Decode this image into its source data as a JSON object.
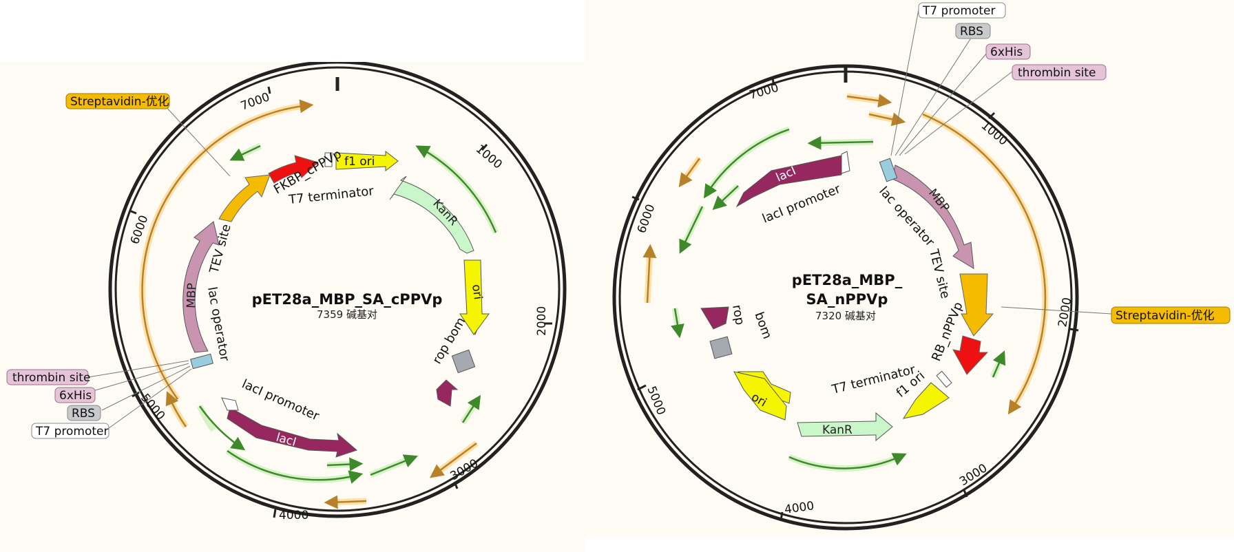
{
  "maps": [
    {
      "title": "pET28a_MBP_SA_cPPVp",
      "size_label": "7359 碱基对",
      "ticks": [
        "1000",
        "2000",
        "3000",
        "4000",
        "5000",
        "6000",
        "7000"
      ],
      "labels": {
        "f1_ori": "f1 ori",
        "kanr": "KanR",
        "ori": "ori",
        "bom": "bom",
        "rop": "rop",
        "laci": "lacI",
        "laci_promoter": "lacI promoter",
        "lac_operator": "lac operator",
        "mbp": "MBP",
        "tev_site": "TEV site",
        "fkbp_cppvp": "FKBP_cPPVp",
        "t7_terminator": "T7 terminator"
      },
      "callouts": {
        "streptavidin": "Streptavidin-优化",
        "thrombin": "thrombin site",
        "his": "6xHis",
        "rbs": "RBS",
        "t7_promoter": "T7 promoter"
      }
    },
    {
      "title_line1": "pET28a_MBP_",
      "title_line2": "SA_nPPVp",
      "size_label": "7320 碱基对",
      "ticks": [
        "1000",
        "2000",
        "3000",
        "4000",
        "5000",
        "6000",
        "7000"
      ],
      "labels": {
        "laci": "lacI",
        "laci_promoter": "lacI promoter",
        "mbp": "MBP",
        "lac_operator": "lac operator",
        "tev_site": "TEV site",
        "rb_nppvp": "RB_nPPVp",
        "t7_terminator": "T7 terminator",
        "f1_ori": "f1 ori",
        "kanr": "KanR",
        "ori": "ori",
        "rop": "rop",
        "bom": "bom"
      },
      "callouts": {
        "t7_promoter": "T7 promoter",
        "rbs": "RBS",
        "his": "6xHis",
        "thrombin": "thrombin site",
        "streptavidin": "Streptavidin-优化"
      }
    }
  ],
  "colors": {
    "background": "#fdfbf4",
    "backbone": "#222222",
    "purple_feature": "#96285f",
    "mbp": "#c994b0",
    "streptavidin": "#f5bb00",
    "red_feature": "#ee1111",
    "yellow_feature": "#f5f500",
    "kanr": "#c9f7c9",
    "bom": "#a5a9b0",
    "orf_green": "#3e8a2a",
    "orf_orange": "#b88028",
    "callout_purple": "#e4c4d6",
    "callout_gray": "#c8cacd",
    "callout_white": "#ffffff"
  },
  "icons": [
    "plasmid-map-icon"
  ]
}
